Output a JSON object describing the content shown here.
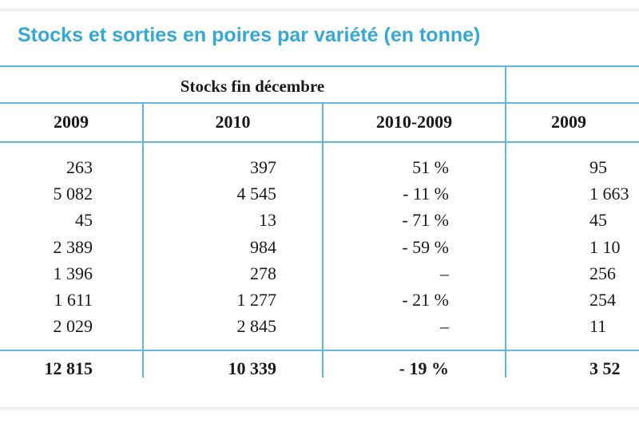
{
  "title": "Stocks et sorties en poires par variété (en tonne)",
  "group_header": "Stocks fin décembre",
  "columns": [
    "2009",
    "2010",
    "2010-2009",
    "2009"
  ],
  "rows": [
    [
      "263",
      "397",
      "51 %",
      "95"
    ],
    [
      "5 082",
      "4 545",
      "- 11 %",
      "1 663"
    ],
    [
      "45",
      "13",
      "- 71 %",
      "45"
    ],
    [
      "2 389",
      "984",
      "- 59 %",
      "1 10"
    ],
    [
      "1 396",
      "278",
      "–",
      "256"
    ],
    [
      "1 611",
      "1 277",
      "- 21 %",
      "254"
    ],
    [
      "2 029",
      "2 845",
      "–",
      "11"
    ]
  ],
  "total": [
    "12 815",
    "10 339",
    "- 19 %",
    "3 52"
  ],
  "colors": {
    "title": "#35a8d6",
    "rule": "#5fb8dc"
  }
}
